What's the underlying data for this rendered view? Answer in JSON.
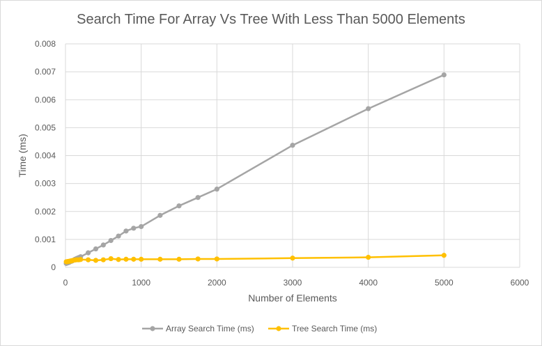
{
  "chart_data": {
    "type": "line",
    "title": "Search Time For Array Vs Tree With Less Than 5000 Elements",
    "xlabel": "Number of Elements",
    "ylabel": "Time (ms)",
    "xlim": [
      0,
      6000
    ],
    "ylim": [
      0,
      0.008
    ],
    "x_ticks": [
      "0",
      "1000",
      "2000",
      "3000",
      "4000",
      "5000",
      "6000"
    ],
    "y_ticks": [
      "0",
      "0.001",
      "0.002",
      "0.003",
      "0.004",
      "0.005",
      "0.006",
      "0.007",
      "0.008"
    ],
    "grid": true,
    "legend_position": "bottom",
    "series": [
      {
        "name": "Array Search Time (ms)",
        "color": "#a5a5a5",
        "x": [
          10,
          20,
          30,
          40,
          50,
          60,
          70,
          80,
          90,
          100,
          125,
          150,
          175,
          200,
          300,
          400,
          500,
          600,
          700,
          800,
          900,
          1000,
          1250,
          1500,
          1750,
          2000,
          3000,
          4000,
          5000
        ],
        "y": [
          0.00014,
          0.00015,
          0.00016,
          0.00017,
          0.00018,
          0.0002,
          0.00021,
          0.00022,
          0.00023,
          0.00025,
          0.00029,
          0.00032,
          0.00035,
          0.00038,
          0.00052,
          0.00066,
          0.0008,
          0.00096,
          0.00112,
          0.0013,
          0.0014,
          0.00146,
          0.00186,
          0.0022,
          0.0025,
          0.0028,
          0.00437,
          0.00568,
          0.00689
        ]
      },
      {
        "name": "Tree Search Time (ms)",
        "color": "#ffc000",
        "x": [
          10,
          20,
          30,
          40,
          50,
          60,
          70,
          80,
          90,
          100,
          125,
          150,
          175,
          200,
          300,
          400,
          500,
          600,
          700,
          800,
          900,
          1000,
          1250,
          1500,
          1750,
          2000,
          3000,
          4000,
          5000
        ],
        "y": [
          0.0002,
          0.0002,
          0.00021,
          0.00021,
          0.00022,
          0.00022,
          0.00023,
          0.00023,
          0.00024,
          0.00025,
          0.00026,
          0.00027,
          0.00027,
          0.00028,
          0.00027,
          0.00025,
          0.00027,
          0.00031,
          0.00028,
          0.00029,
          0.00029,
          0.00029,
          0.00029,
          0.00029,
          0.0003,
          0.0003,
          0.00033,
          0.00036,
          0.00043
        ]
      }
    ]
  }
}
